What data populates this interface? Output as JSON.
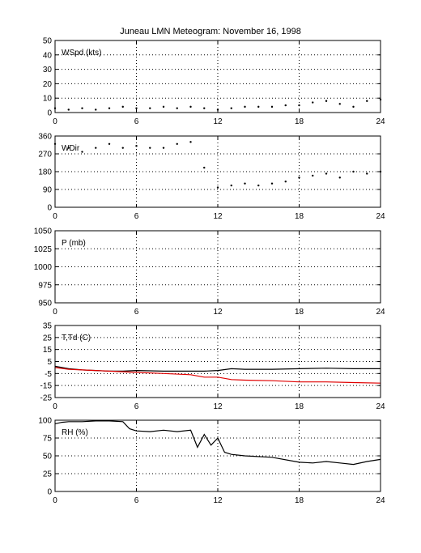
{
  "title": "Juneau LMN Meteogram:  November 16, 1998",
  "chart_data": [
    {
      "type": "scatter",
      "label": "WSpd (kts)",
      "xlim": [
        0,
        24
      ],
      "ylim": [
        0,
        50
      ],
      "xticks": [
        0,
        6,
        12,
        18,
        24
      ],
      "yticks": [
        0,
        10,
        20,
        30,
        40,
        50
      ],
      "grid": true,
      "series": [
        {
          "color": "#000000",
          "x": [
            0,
            1,
            2,
            3,
            4,
            5,
            6,
            7,
            8,
            9,
            10,
            11,
            12,
            13,
            14,
            15,
            16,
            17,
            18,
            19,
            20,
            21,
            22,
            23,
            24
          ],
          "y": [
            3,
            2,
            3,
            2,
            3,
            4,
            3,
            3,
            4,
            3,
            4,
            3,
            2,
            3,
            4,
            4,
            4,
            5,
            5,
            7,
            8,
            6,
            4,
            8,
            9
          ]
        }
      ]
    },
    {
      "type": "scatter",
      "label": "WDir",
      "xlim": [
        0,
        24
      ],
      "ylim": [
        0,
        360
      ],
      "xticks": [
        0,
        6,
        12,
        18,
        24
      ],
      "yticks": [
        0,
        90,
        180,
        270,
        360
      ],
      "grid": true,
      "series": [
        {
          "color": "#000000",
          "x": [
            0,
            1,
            2,
            3,
            4,
            5,
            6,
            7,
            8,
            9,
            10,
            11,
            12,
            13,
            14,
            15,
            16,
            17,
            18,
            19,
            20,
            21,
            22,
            23,
            24
          ],
          "y": [
            320,
            300,
            280,
            300,
            320,
            300,
            310,
            300,
            300,
            320,
            330,
            200,
            100,
            110,
            120,
            110,
            120,
            130,
            150,
            160,
            170,
            150,
            180,
            170,
            180
          ]
        }
      ]
    },
    {
      "type": "line",
      "label": "P (mb)",
      "xlim": [
        0,
        24
      ],
      "ylim": [
        950,
        1050
      ],
      "xticks": [
        0,
        6,
        12,
        18,
        24
      ],
      "yticks": [
        950,
        975,
        1000,
        1025,
        1050
      ],
      "grid": true,
      "series": []
    },
    {
      "type": "line",
      "label": "T,Td (C)",
      "xlim": [
        0,
        24
      ],
      "ylim": [
        -25,
        35
      ],
      "xticks": [
        0,
        6,
        12,
        18,
        24
      ],
      "yticks": [
        -25,
        -15,
        -5,
        5,
        15,
        25,
        35
      ],
      "grid": true,
      "series": [
        {
          "color": "#000000",
          "x": [
            0,
            1,
            2,
            3,
            4,
            5,
            6,
            8,
            10,
            11,
            12,
            13,
            14,
            16,
            18,
            20,
            22,
            24
          ],
          "y": [
            1,
            -1,
            -2,
            -2.5,
            -3,
            -3,
            -2.5,
            -3,
            -3,
            -3,
            -2.5,
            -1,
            -1.5,
            -1.5,
            -1,
            -0.5,
            -1,
            -1
          ]
        },
        {
          "color": "#e00000",
          "x": [
            0,
            1,
            2,
            3,
            4,
            5,
            6,
            8,
            10,
            11,
            12,
            13,
            14,
            16,
            18,
            20,
            22,
            24
          ],
          "y": [
            0,
            -1.5,
            -2,
            -2.5,
            -3,
            -3.5,
            -4,
            -5,
            -6,
            -8,
            -8,
            -10,
            -10.5,
            -11,
            -12,
            -12,
            -12.5,
            -13
          ]
        }
      ]
    },
    {
      "type": "line",
      "label": "RH (%)",
      "xlim": [
        0,
        24
      ],
      "ylim": [
        0,
        100
      ],
      "xticks": [
        0,
        6,
        12,
        18,
        24
      ],
      "yticks": [
        0,
        25,
        50,
        75,
        100
      ],
      "grid": true,
      "series": [
        {
          "color": "#000000",
          "x": [
            0,
            0.5,
            1,
            2,
            3,
            4,
            5,
            5.5,
            6,
            7,
            8,
            9,
            10,
            10.5,
            11,
            11.5,
            12,
            12.5,
            13,
            14,
            16,
            18,
            19,
            20,
            21,
            22,
            23,
            24
          ],
          "y": [
            95,
            97,
            98,
            98,
            99,
            99,
            98,
            88,
            85,
            84,
            86,
            84,
            86,
            62,
            80,
            65,
            75,
            55,
            52,
            50,
            48,
            41,
            40,
            42,
            40,
            38,
            42,
            45
          ]
        }
      ]
    }
  ]
}
